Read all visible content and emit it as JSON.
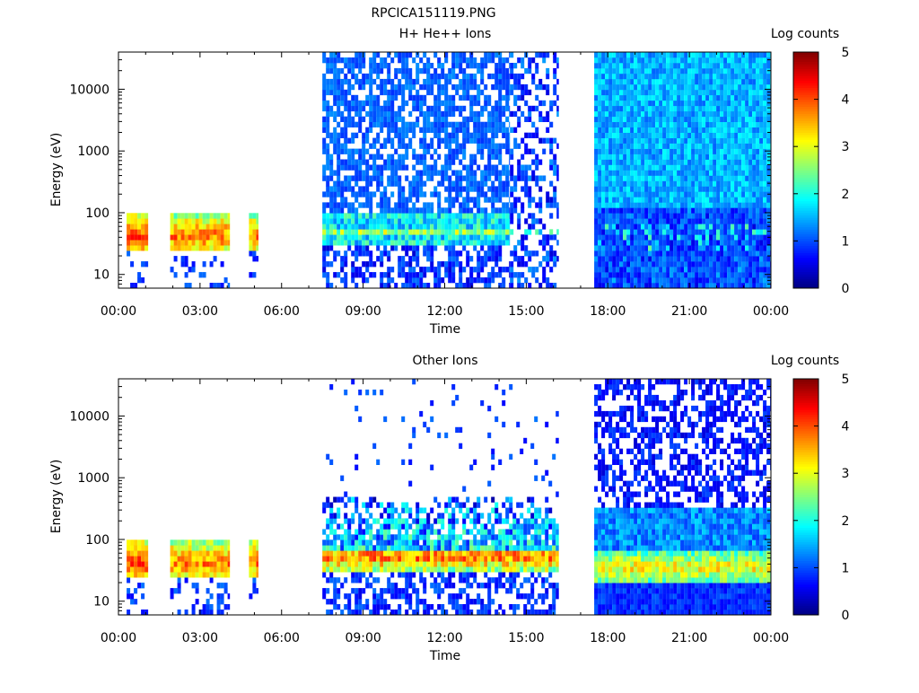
{
  "figure_title": "RPCICA151119.PNG",
  "chart_data": [
    {
      "type": "heatmap",
      "title": "H+ He++ Ions",
      "xlabel": "Time",
      "ylabel": "Energy (eV)",
      "x_ticks": [
        "00:00",
        "03:00",
        "06:00",
        "09:00",
        "12:00",
        "15:00",
        "18:00",
        "21:00",
        "00:00"
      ],
      "x_range_hours": [
        0,
        24
      ],
      "y_scale": "log",
      "y_ticks": [
        "10",
        "100",
        "1000",
        "10000"
      ],
      "y_tick_values": [
        10,
        100,
        1000,
        10000
      ],
      "y_range": [
        6,
        40000
      ],
      "colorbar": {
        "label": "Log counts",
        "range": [
          0,
          5
        ],
        "ticks": [
          "0",
          "1",
          "2",
          "3",
          "4",
          "5"
        ]
      },
      "data_intervals": [
        {
          "start_hour": 0.3,
          "end_hour": 1.1,
          "level": 3.5,
          "noise": 0.4,
          "profile": "low-energy-peak"
        },
        {
          "start_hour": 1.9,
          "end_hour": 4.1,
          "level": 3.2,
          "noise": 0.5,
          "profile": "low-energy-peak"
        },
        {
          "start_hour": 4.8,
          "end_hour": 5.15,
          "level": 3.2,
          "noise": 0.5,
          "profile": "low-energy-peak"
        },
        {
          "start_hour": 7.5,
          "end_hour": 14.4,
          "level": 1.1,
          "noise": 0.5,
          "profile": "sparse-with-band"
        },
        {
          "start_hour": 14.4,
          "end_hour": 16.2,
          "level": 0.9,
          "noise": 0.5,
          "profile": "patchy"
        },
        {
          "start_hour": 17.5,
          "end_hour": 24.0,
          "level": 1.5,
          "noise": 0.4,
          "profile": "uniform-band"
        }
      ]
    },
    {
      "type": "heatmap",
      "title": "Other Ions",
      "xlabel": "Time",
      "ylabel": "Energy (eV)",
      "x_ticks": [
        "00:00",
        "03:00",
        "06:00",
        "09:00",
        "12:00",
        "15:00",
        "18:00",
        "21:00",
        "00:00"
      ],
      "x_range_hours": [
        0,
        24
      ],
      "y_scale": "log",
      "y_ticks": [
        "10",
        "100",
        "1000",
        "10000"
      ],
      "y_tick_values": [
        10,
        100,
        1000,
        10000
      ],
      "y_range": [
        6,
        40000
      ],
      "colorbar": {
        "label": "Log counts",
        "range": [
          0,
          5
        ],
        "ticks": [
          "0",
          "1",
          "2",
          "3",
          "4",
          "5"
        ]
      },
      "data_intervals": [
        {
          "start_hour": 0.3,
          "end_hour": 1.1,
          "level": 3.5,
          "noise": 0.4,
          "profile": "low-energy-peak"
        },
        {
          "start_hour": 1.9,
          "end_hour": 4.1,
          "level": 3.2,
          "noise": 0.5,
          "profile": "low-energy-peak"
        },
        {
          "start_hour": 4.8,
          "end_hour": 5.15,
          "level": 3.2,
          "noise": 0.5,
          "profile": "low-energy-peak"
        },
        {
          "start_hour": 7.5,
          "end_hour": 16.2,
          "level": 3.3,
          "noise": 0.6,
          "profile": "strong-band-sparse-top"
        },
        {
          "start_hour": 17.5,
          "end_hour": 24.0,
          "level": 2.8,
          "noise": 0.5,
          "profile": "strong-band-noisy-top"
        }
      ]
    }
  ]
}
